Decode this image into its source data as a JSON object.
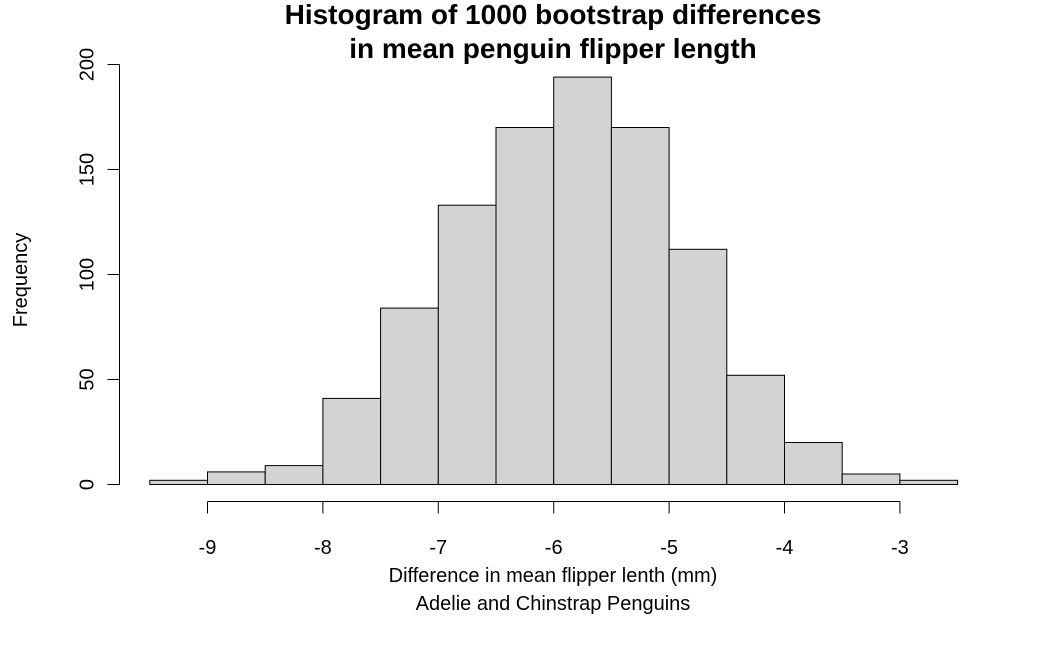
{
  "chart_data": {
    "type": "bar",
    "title": [
      "Histogram of 1000 bootstrap differences",
      "in mean penguin flipper length"
    ],
    "xlabel": "Difference in mean flipper lenth (mm)",
    "subtitle": "Adelie and Chinstrap Penguins",
    "ylabel": "Frequency",
    "bins": [
      {
        "start": -9.5,
        "end": -9.0,
        "count": 2
      },
      {
        "start": -9.0,
        "end": -8.5,
        "count": 6
      },
      {
        "start": -8.5,
        "end": -8.0,
        "count": 9
      },
      {
        "start": -8.0,
        "end": -7.5,
        "count": 41
      },
      {
        "start": -7.5,
        "end": -7.0,
        "count": 84
      },
      {
        "start": -7.0,
        "end": -6.5,
        "count": 133
      },
      {
        "start": -6.5,
        "end": -6.0,
        "count": 170
      },
      {
        "start": -6.0,
        "end": -5.5,
        "count": 194
      },
      {
        "start": -5.5,
        "end": -5.0,
        "count": 170
      },
      {
        "start": -5.0,
        "end": -4.5,
        "count": 112
      },
      {
        "start": -4.5,
        "end": -4.0,
        "count": 52
      },
      {
        "start": -4.0,
        "end": -3.5,
        "count": 20
      },
      {
        "start": -3.5,
        "end": -3.0,
        "count": 5
      },
      {
        "start": -3.0,
        "end": -2.5,
        "count": 2
      }
    ],
    "x_ticks": [
      -9,
      -8,
      -7,
      -6,
      -5,
      -4,
      -3
    ],
    "y_ticks": [
      0,
      50,
      100,
      150,
      200
    ],
    "xlim": [
      -9.5,
      -2.5
    ],
    "ylim": [
      0,
      200
    ],
    "grid": false,
    "legend": "none",
    "bar_fill": "#d3d3d3",
    "bar_stroke": "#000000"
  }
}
